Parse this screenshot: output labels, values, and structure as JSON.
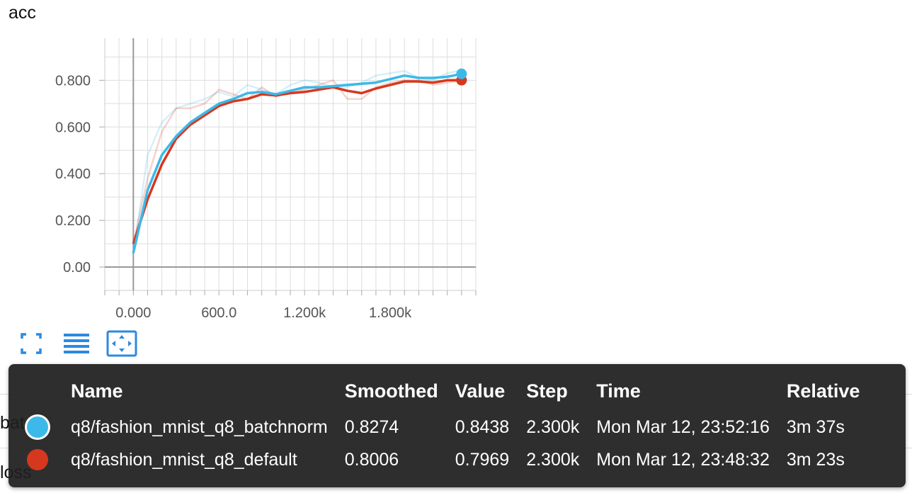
{
  "card": {
    "title": "acc",
    "behind_labels": [
      "bat",
      "loss"
    ]
  },
  "toolbar": {
    "fullscreen_icon": "expand-icon",
    "data_table_icon": "list-icon",
    "fit_domain_icon": "fit-domain-icon"
  },
  "colors": {
    "batchnorm": "#3cb9e8",
    "default": "#d6381f",
    "axis": "#999999",
    "grid": "#dddddd"
  },
  "chart_data": {
    "type": "line",
    "title": "acc",
    "xlabel": "",
    "ylabel": "",
    "xlim": [
      -200,
      2400
    ],
    "ylim": [
      -0.1,
      0.98
    ],
    "x_ticks": [
      "0.000",
      "600.0",
      "1.200k",
      "1.800k"
    ],
    "x_tick_values": [
      0,
      600,
      1200,
      1800
    ],
    "y_ticks": [
      "0.00",
      "0.200",
      "0.400",
      "0.600",
      "0.800"
    ],
    "y_tick_values": [
      0,
      0.2,
      0.4,
      0.6,
      0.8
    ],
    "grid": true,
    "x": [
      0,
      100,
      200,
      300,
      400,
      500,
      600,
      700,
      800,
      900,
      1000,
      1100,
      1200,
      1300,
      1400,
      1500,
      1600,
      1700,
      1800,
      1900,
      2000,
      2100,
      2200,
      2300
    ],
    "series": [
      {
        "name": "q8/fashion_mnist_q8_batchnorm",
        "color": "#3cb9e8",
        "smoothed": [
          0.06,
          0.33,
          0.48,
          0.56,
          0.62,
          0.66,
          0.7,
          0.72,
          0.745,
          0.75,
          0.74,
          0.755,
          0.77,
          0.77,
          0.775,
          0.78,
          0.785,
          0.79,
          0.805,
          0.82,
          0.81,
          0.81,
          0.815,
          0.8274
        ],
        "raw": [
          0.06,
          0.48,
          0.62,
          0.68,
          0.7,
          0.72,
          0.75,
          0.73,
          0.78,
          0.76,
          0.74,
          0.78,
          0.8,
          0.79,
          0.77,
          0.77,
          0.79,
          0.82,
          0.83,
          0.84,
          0.81,
          0.8,
          0.83,
          0.8438
        ]
      },
      {
        "name": "q8/fashion_mnist_q8_default",
        "color": "#d6381f",
        "smoothed": [
          0.1,
          0.29,
          0.44,
          0.55,
          0.61,
          0.65,
          0.69,
          0.71,
          0.72,
          0.74,
          0.735,
          0.745,
          0.75,
          0.76,
          0.77,
          0.755,
          0.745,
          0.765,
          0.78,
          0.795,
          0.795,
          0.79,
          0.8,
          0.8006
        ],
        "raw": [
          0.1,
          0.38,
          0.58,
          0.68,
          0.68,
          0.7,
          0.76,
          0.74,
          0.72,
          0.77,
          0.73,
          0.75,
          0.76,
          0.78,
          0.8,
          0.72,
          0.72,
          0.77,
          0.79,
          0.8,
          0.8,
          0.78,
          0.79,
          0.7969
        ]
      }
    ]
  },
  "tooltip": {
    "headers": [
      "Name",
      "Smoothed",
      "Value",
      "Step",
      "Time",
      "Relative"
    ],
    "rows": [
      {
        "color": "#3cb9e8",
        "selected": true,
        "name": "q8/fashion_mnist_q8_batchnorm",
        "smoothed": "0.8274",
        "value": "0.8438",
        "step": "2.300k",
        "time": "Mon Mar 12, 23:52:16",
        "relative": "3m 37s"
      },
      {
        "color": "#d6381f",
        "selected": false,
        "name": "q8/fashion_mnist_q8_default",
        "smoothed": "0.8006",
        "value": "0.7969",
        "step": "2.300k",
        "time": "Mon Mar 12, 23:48:32",
        "relative": "3m 23s"
      }
    ]
  }
}
